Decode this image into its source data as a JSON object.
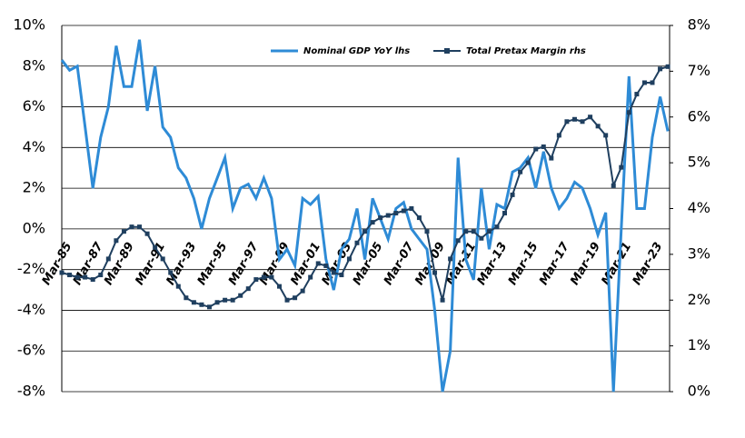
{
  "chart_data": {
    "type": "line",
    "categories": [
      "Mar-85",
      null,
      null,
      null,
      "Mar-87",
      null,
      null,
      null,
      "Mar-89",
      null,
      null,
      null,
      "Mar-91",
      null,
      null,
      null,
      "Mar-93",
      null,
      null,
      null,
      "Mar-95",
      null,
      null,
      null,
      "Mar-97",
      null,
      null,
      null,
      "Mar-99",
      null,
      null,
      null,
      "Mar-01",
      null,
      null,
      null,
      "Mar-03",
      null,
      null,
      null,
      "Mar-05",
      null,
      null,
      null,
      "Mar-07",
      null,
      null,
      null,
      "Mar-09",
      null,
      null,
      null,
      "Mar-11",
      null,
      null,
      null,
      "Mar-13",
      null,
      null,
      null,
      "Mar-15",
      null,
      null,
      null,
      "Mar-17",
      null,
      null,
      null,
      "Mar-19",
      null,
      null,
      null,
      "Mar-21",
      null,
      null,
      null,
      "Mar-23",
      null,
      null
    ],
    "series": [
      {
        "name": "Nominal GDP YoY lhs",
        "color": "#2e8bd6",
        "values": [
          8.3,
          7.8,
          8.0,
          5.0,
          2.0,
          4.5,
          6.0,
          9.0,
          7.0,
          7.0,
          9.3,
          5.8,
          8.0,
          5.0,
          4.5,
          3.0,
          2.5,
          1.5,
          0.0,
          1.5,
          2.5,
          3.5,
          1.0,
          2.0,
          2.2,
          1.5,
          2.5,
          1.5,
          -1.5,
          -1.0,
          -1.8,
          1.5,
          1.2,
          1.6,
          -1.5,
          -3.0,
          -1.0,
          -0.5,
          1.0,
          -1.5,
          1.5,
          0.5,
          -0.5,
          1.0,
          1.3,
          0.0,
          -0.5,
          -1.0,
          -4.0,
          -8.0,
          -6.0,
          3.5,
          -1.5,
          -2.5,
          2.0,
          -1.0,
          1.2,
          1.0,
          2.8,
          3.0,
          3.5,
          2.0,
          3.8,
          2.0,
          1.0,
          1.5,
          2.3,
          2.0,
          1.0,
          -0.3,
          0.8,
          -8.0,
          0.0,
          7.5,
          1.0,
          1.0,
          4.5,
          6.5,
          4.8
        ]
      },
      {
        "name": "Total Pretax Margin rhs",
        "color": "#1f3f5f",
        "axis": "y2",
        "marker": "square",
        "values": [
          2.6,
          2.55,
          2.5,
          2.5,
          2.45,
          2.55,
          2.9,
          3.3,
          3.5,
          3.6,
          3.6,
          3.45,
          3.15,
          2.9,
          2.6,
          2.3,
          2.05,
          1.95,
          1.9,
          1.85,
          1.95,
          2.0,
          2.0,
          2.1,
          2.25,
          2.45,
          2.5,
          2.5,
          2.3,
          2.0,
          2.05,
          2.2,
          2.5,
          2.8,
          2.75,
          2.6,
          2.55,
          2.9,
          3.25,
          3.5,
          3.7,
          3.8,
          3.85,
          3.9,
          3.95,
          4.0,
          3.8,
          3.5,
          2.6,
          2.0,
          2.9,
          3.3,
          3.5,
          3.5,
          3.35,
          3.5,
          3.6,
          3.9,
          4.3,
          4.8,
          5.0,
          5.3,
          5.35,
          5.1,
          5.6,
          5.9,
          5.95,
          5.9,
          6.0,
          5.8,
          5.6,
          4.5,
          4.9,
          6.1,
          6.5,
          6.75,
          6.75,
          7.05,
          7.1
        ]
      }
    ],
    "ylim": [
      -8,
      10
    ],
    "yticks": [
      {
        "value": -8,
        "label": "-8%"
      },
      {
        "value": -6,
        "label": "-6%"
      },
      {
        "value": -4,
        "label": "-4%"
      },
      {
        "value": -2,
        "label": "-2%"
      },
      {
        "value": 0,
        "label": "0%"
      },
      {
        "value": 2,
        "label": "2%"
      },
      {
        "value": 4,
        "label": "4%"
      },
      {
        "value": 6,
        "label": "6%"
      },
      {
        "value": 8,
        "label": "8%"
      },
      {
        "value": 10,
        "label": "10%"
      }
    ],
    "y2lim": [
      0,
      8
    ],
    "y2ticks": [
      {
        "value": 0,
        "label": "0%"
      },
      {
        "value": 1,
        "label": "1%"
      },
      {
        "value": 2,
        "label": "2%"
      },
      {
        "value": 3,
        "label": "3%"
      },
      {
        "value": 4,
        "label": "4%"
      },
      {
        "value": 5,
        "label": "5%"
      },
      {
        "value": 6,
        "label": "6%"
      },
      {
        "value": 7,
        "label": "7%"
      },
      {
        "value": 8,
        "label": "8%"
      }
    ],
    "grid": true,
    "legend": "top"
  }
}
